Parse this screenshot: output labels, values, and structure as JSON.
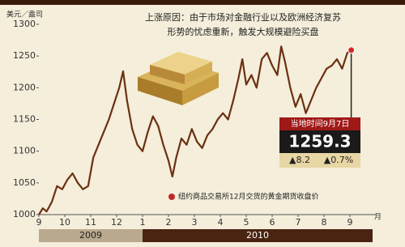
{
  "chart_data": {
    "type": "line",
    "y_label": "美元／盎司",
    "annotation": [
      "上涨原因：由于市场对金融行业以及欧洲经济复苏",
      "形势的忧虑重新，触发大规模避险买盘"
    ],
    "note": "纽约商品交易所12月交货的黄金期货收盘价",
    "callout": {
      "date": "当地时间9月7日",
      "price": "1259.3",
      "change": "▲8.2",
      "change_pct": "▲0.7%"
    },
    "x_unit": "月",
    "year_labels": [
      "2009",
      "2010"
    ],
    "x": [
      0,
      0.15,
      0.3,
      0.5,
      0.7,
      0.9,
      1.1,
      1.3,
      1.5,
      1.7,
      1.9,
      2.1,
      2.3,
      2.5,
      2.7,
      2.9,
      3.1,
      3.25,
      3.4,
      3.6,
      3.8,
      4.0,
      4.2,
      4.4,
      4.6,
      4.8,
      5.0,
      5.15,
      5.3,
      5.5,
      5.7,
      5.9,
      6.1,
      6.3,
      6.5,
      6.7,
      6.9,
      7.1,
      7.3,
      7.5,
      7.7,
      7.85,
      8.0,
      8.2,
      8.4,
      8.6,
      8.8,
      9.0,
      9.2,
      9.35,
      9.5,
      9.7,
      9.9,
      10.1,
      10.3,
      10.5,
      10.7,
      10.9,
      11.1,
      11.3,
      11.5,
      11.7,
      11.9,
      12.05
    ],
    "series": [
      {
        "color": "#6b3010",
        "values": [
          1000,
          1010,
          1005,
          1020,
          1045,
          1040,
          1055,
          1065,
          1050,
          1040,
          1045,
          1090,
          1110,
          1130,
          1150,
          1175,
          1200,
          1226,
          1180,
          1135,
          1110,
          1100,
          1130,
          1155,
          1140,
          1110,
          1085,
          1060,
          1090,
          1120,
          1110,
          1135,
          1115,
          1105,
          1125,
          1135,
          1150,
          1160,
          1150,
          1180,
          1215,
          1245,
          1205,
          1220,
          1200,
          1245,
          1255,
          1235,
          1220,
          1265,
          1240,
          1200,
          1170,
          1190,
          1160,
          1180,
          1200,
          1215,
          1230,
          1235,
          1245,
          1230,
          1255,
          1259.3
        ]
      }
    ],
    "xlim": [
      0,
      13
    ],
    "xticks": [
      {
        "value": 0,
        "label": "9"
      },
      {
        "value": 1,
        "label": "10"
      },
      {
        "value": 2,
        "label": "11"
      },
      {
        "value": 3,
        "label": "12"
      },
      {
        "value": 4,
        "label": "1"
      },
      {
        "value": 5,
        "label": "2"
      },
      {
        "value": 6,
        "label": "3"
      },
      {
        "value": 7,
        "label": "4"
      },
      {
        "value": 8,
        "label": "5"
      },
      {
        "value": 9,
        "label": "6"
      },
      {
        "value": 10,
        "label": "7"
      },
      {
        "value": 11,
        "label": "8"
      },
      {
        "value": 12,
        "label": "9"
      }
    ],
    "ylim": [
      1000,
      1300
    ],
    "yticks": [
      1000,
      1050,
      1100,
      1150,
      1200,
      1250,
      1300
    ]
  }
}
